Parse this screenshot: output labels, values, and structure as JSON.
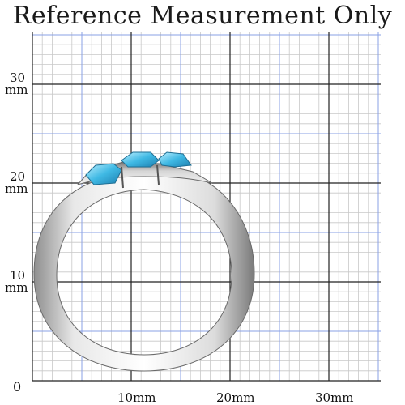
{
  "title": "Reference Measurement Only",
  "y_labels": [
    {
      "value": "30",
      "unit": "mm"
    },
    {
      "value": "20",
      "unit": "mm"
    },
    {
      "value": "10",
      "unit": "mm"
    }
  ],
  "zero_label": "0",
  "x_labels": [
    "10mm",
    "20mm",
    "30mm"
  ],
  "colors": {
    "grid_minor": "#c8c8c8",
    "grid_mid": "#8aa0e6",
    "grid_major": "#222222",
    "metal_light": "#f2f2f2",
    "metal_dark": "#8e8e8e",
    "stone": "#4fc4e8"
  },
  "subject": "ring-with-three-blue-stones"
}
